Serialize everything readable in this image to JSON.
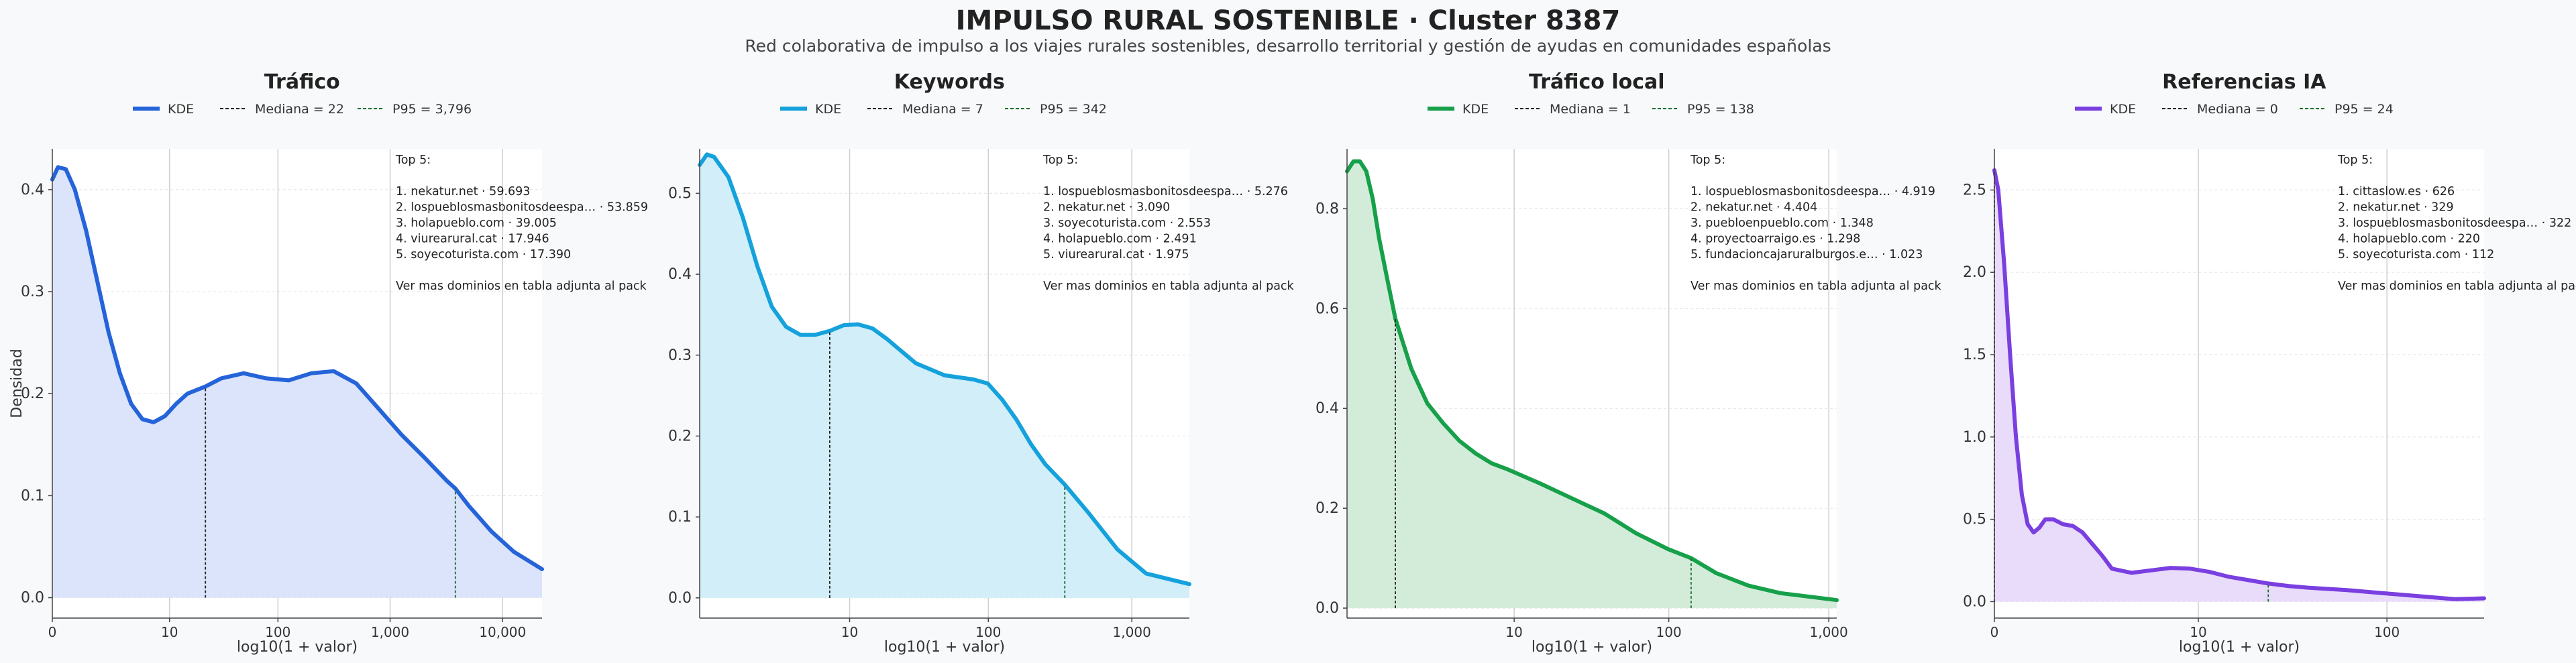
{
  "title": "IMPULSO RURAL SOSTENIBLE · Cluster 8387",
  "subtitle": "Red colaborativa de impulso a los viajes rurales sostenibles, desarrollo territorial y gestión de ayudas en comunidades españolas",
  "chart_data": [
    {
      "type": "area",
      "title": "Tráfico",
      "color": "#2563d9",
      "fill": "#dbe4fa",
      "xlabel": "log10(1 + valor)",
      "ylabel": "Densidad",
      "xlim": [
        0,
        4.35
      ],
      "ylim": [
        -0.02,
        0.44
      ],
      "yticks": [
        0.0,
        0.1,
        0.2,
        0.3,
        0.4
      ],
      "ytick_labels": [
        "0.0",
        "0.1",
        "0.2",
        "0.3",
        "0.4"
      ],
      "xticks": [
        0,
        1.041,
        2.004,
        3.0004,
        4.00004
      ],
      "xtick_labels": [
        "0",
        "10",
        "100",
        "1,000",
        "10,000"
      ],
      "legend": [
        "KDE",
        "Mediana = 22",
        "P95 = 3,796"
      ],
      "median": 1.36,
      "median_y": 0.207,
      "p95": 3.58,
      "p95_y": 0.107,
      "x": [
        0,
        0.05,
        0.12,
        0.2,
        0.3,
        0.4,
        0.5,
        0.6,
        0.7,
        0.8,
        0.9,
        1.0,
        1.1,
        1.2,
        1.36,
        1.5,
        1.7,
        1.9,
        2.1,
        2.3,
        2.5,
        2.7,
        2.9,
        3.1,
        3.3,
        3.5,
        3.58,
        3.7,
        3.9,
        4.1,
        4.35
      ],
      "y": [
        0.41,
        0.422,
        0.42,
        0.4,
        0.36,
        0.31,
        0.26,
        0.22,
        0.19,
        0.175,
        0.172,
        0.178,
        0.19,
        0.2,
        0.207,
        0.215,
        0.22,
        0.215,
        0.213,
        0.22,
        0.222,
        0.21,
        0.185,
        0.16,
        0.138,
        0.115,
        0.107,
        0.09,
        0.065,
        0.045,
        0.028
      ],
      "note": [
        "Top 5:",
        "",
        "1. nekatur.net · 59.693",
        "2. lospueblosmasbonitosdeespa… · 53.859",
        "3. holapueblo.com · 39.005",
        "4. viurearural.cat · 17.946",
        "5. soyecoturista.com · 17.390",
        "",
        "Ver mas dominios en tabla adjunta al pack"
      ]
    },
    {
      "type": "area",
      "title": "Keywords",
      "color": "#15a1dc",
      "fill": "#d2eef9",
      "xlabel": "log10(1 + valor)",
      "ylabel": "",
      "xlim": [
        0,
        3.4
      ],
      "ylim": [
        -0.025,
        0.555
      ],
      "yticks": [
        0.0,
        0.1,
        0.2,
        0.3,
        0.4,
        0.5
      ],
      "ytick_labels": [
        "0.0",
        "0.1",
        "0.2",
        "0.3",
        "0.4",
        "0.5"
      ],
      "xticks": [
        1.041,
        2.004,
        3.0004
      ],
      "xtick_labels": [
        "10",
        "100",
        "1,000"
      ],
      "legend": [
        "KDE",
        "Mediana = 7",
        "P95 = 342"
      ],
      "median": 0.903,
      "median_y": 0.33,
      "p95": 2.535,
      "p95_y": 0.14,
      "x": [
        0,
        0.05,
        0.1,
        0.2,
        0.3,
        0.4,
        0.5,
        0.6,
        0.7,
        0.8,
        0.903,
        1.0,
        1.1,
        1.2,
        1.3,
        1.5,
        1.7,
        1.9,
        2.0,
        2.1,
        2.2,
        2.3,
        2.4,
        2.535,
        2.7,
        2.9,
        3.1,
        3.4
      ],
      "y": [
        0.535,
        0.548,
        0.545,
        0.52,
        0.47,
        0.41,
        0.36,
        0.335,
        0.325,
        0.325,
        0.33,
        0.337,
        0.338,
        0.333,
        0.32,
        0.29,
        0.275,
        0.27,
        0.265,
        0.245,
        0.22,
        0.19,
        0.165,
        0.14,
        0.105,
        0.06,
        0.03,
        0.017
      ],
      "note": [
        "Top 5:",
        "",
        "1. lospueblosmasbonitosdeespa… · 5.276",
        "2. nekatur.net · 3.090",
        "3. soyecoturista.com · 2.553",
        "4. holapueblo.com · 2.491",
        "5. viurearural.cat · 1.975",
        "",
        "Ver mas dominios en tabla adjunta al pack"
      ]
    },
    {
      "type": "area",
      "title": "Tráfico local",
      "color": "#17a04a",
      "fill": "#d3ecda",
      "xlabel": "log10(1 + valor)",
      "ylabel": "",
      "xlim": [
        0,
        3.05
      ],
      "ylim": [
        -0.02,
        0.92
      ],
      "yticks": [
        0.0,
        0.2,
        0.4,
        0.6,
        0.8
      ],
      "ytick_labels": [
        "0.0",
        "0.2",
        "0.4",
        "0.6",
        "0.8"
      ],
      "xticks": [
        1.041,
        2.004,
        3.0004
      ],
      "xtick_labels": [
        "10",
        "100",
        "1,000"
      ],
      "legend": [
        "KDE",
        "Mediana = 1",
        "P95 = 138"
      ],
      "median": 0.301,
      "median_y": 0.58,
      "p95": 2.143,
      "p95_y": 0.1,
      "x": [
        0,
        0.04,
        0.08,
        0.12,
        0.16,
        0.2,
        0.25,
        0.301,
        0.35,
        0.4,
        0.5,
        0.6,
        0.7,
        0.8,
        0.9,
        1.0,
        1.2,
        1.4,
        1.6,
        1.8,
        2.0,
        2.143,
        2.3,
        2.5,
        2.7,
        2.9,
        3.05
      ],
      "y": [
        0.875,
        0.895,
        0.895,
        0.875,
        0.82,
        0.74,
        0.66,
        0.58,
        0.53,
        0.48,
        0.41,
        0.37,
        0.335,
        0.31,
        0.29,
        0.278,
        0.25,
        0.22,
        0.19,
        0.15,
        0.118,
        0.1,
        0.07,
        0.045,
        0.03,
        0.022,
        0.016
      ],
      "note": [
        "Top 5:",
        "",
        "1. lospueblosmasbonitosdeespa… · 4.919",
        "2. nekatur.net · 4.404",
        "3. puebloenpueblo.com · 1.348",
        "4. proyectoarraigo.es · 1.298",
        "5. fundacioncajaruralburgos.e… · 1.023",
        "",
        "Ver mas dominios en tabla adjunta al pack"
      ]
    },
    {
      "type": "area",
      "title": "Referencias IA",
      "color": "#7a3fe0",
      "fill": "#e8dcfa",
      "xlabel": "log10(1 + valor)",
      "ylabel": "",
      "xlim": [
        0,
        2.5
      ],
      "ylim": [
        -0.1,
        2.75
      ],
      "yticks": [
        0.0,
        0.5,
        1.0,
        1.5,
        2.0,
        2.5
      ],
      "ytick_labels": [
        "0.0",
        "0.5",
        "1.0",
        "1.5",
        "2.0",
        "2.5"
      ],
      "xticks": [
        0,
        1.041,
        2.004
      ],
      "xtick_labels": [
        "0",
        "10",
        "100"
      ],
      "legend": [
        "KDE",
        "Mediana = 0",
        "P95 = 24"
      ],
      "median": 0.0,
      "median_y": 2.62,
      "p95": 1.398,
      "p95_y": 0.11,
      "x": [
        0,
        0.02,
        0.05,
        0.08,
        0.11,
        0.14,
        0.17,
        0.2,
        0.23,
        0.26,
        0.3,
        0.35,
        0.4,
        0.45,
        0.5,
        0.55,
        0.6,
        0.7,
        0.8,
        0.9,
        1.0,
        1.1,
        1.2,
        1.3,
        1.398,
        1.5,
        1.6,
        1.8,
        2.0,
        2.2,
        2.35,
        2.5
      ],
      "y": [
        2.62,
        2.5,
        2.05,
        1.5,
        1.0,
        0.65,
        0.47,
        0.42,
        0.45,
        0.5,
        0.5,
        0.47,
        0.46,
        0.42,
        0.35,
        0.28,
        0.2,
        0.175,
        0.19,
        0.205,
        0.2,
        0.18,
        0.15,
        0.13,
        0.11,
        0.095,
        0.085,
        0.07,
        0.05,
        0.03,
        0.015,
        0.02
      ],
      "note": [
        "Top 5:",
        "",
        "1. cittaslow.es · 626",
        "2. nekatur.net · 329",
        "3. lospueblosmasbonitosdeespa… · 322",
        "4. holapueblo.com · 220",
        "5. soyecoturista.com · 112",
        "",
        "Ver mas dominios en tabla adjunta al pack"
      ]
    }
  ]
}
